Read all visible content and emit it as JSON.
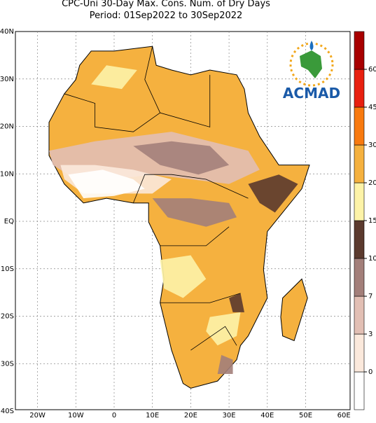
{
  "title": "CPC-Uni 30-Day Max. Cons. Num. of Dry Days",
  "subtitle": "Period: 01Sep2022 to 30Sep2022",
  "lat_labels": [
    "40N",
    "30N",
    "20N",
    "10N",
    "EQ",
    "10S",
    "20S",
    "30S",
    "40S"
  ],
  "lon_labels": [
    "20W",
    "10W",
    "0",
    "10E",
    "20E",
    "30E",
    "40E",
    "50E",
    "60E"
  ],
  "colorbar": {
    "levels": [
      0,
      3,
      7,
      10,
      15,
      20,
      30,
      45,
      60
    ],
    "colors": [
      "#ffffff",
      "#fbe9dc",
      "#e2bfb4",
      "#a37f7a",
      "#5b3a2e",
      "#fdf3a8",
      "#f5b13f",
      "#f87a10",
      "#e82010",
      "#a80000"
    ]
  },
  "logo": "ACMAD"
}
